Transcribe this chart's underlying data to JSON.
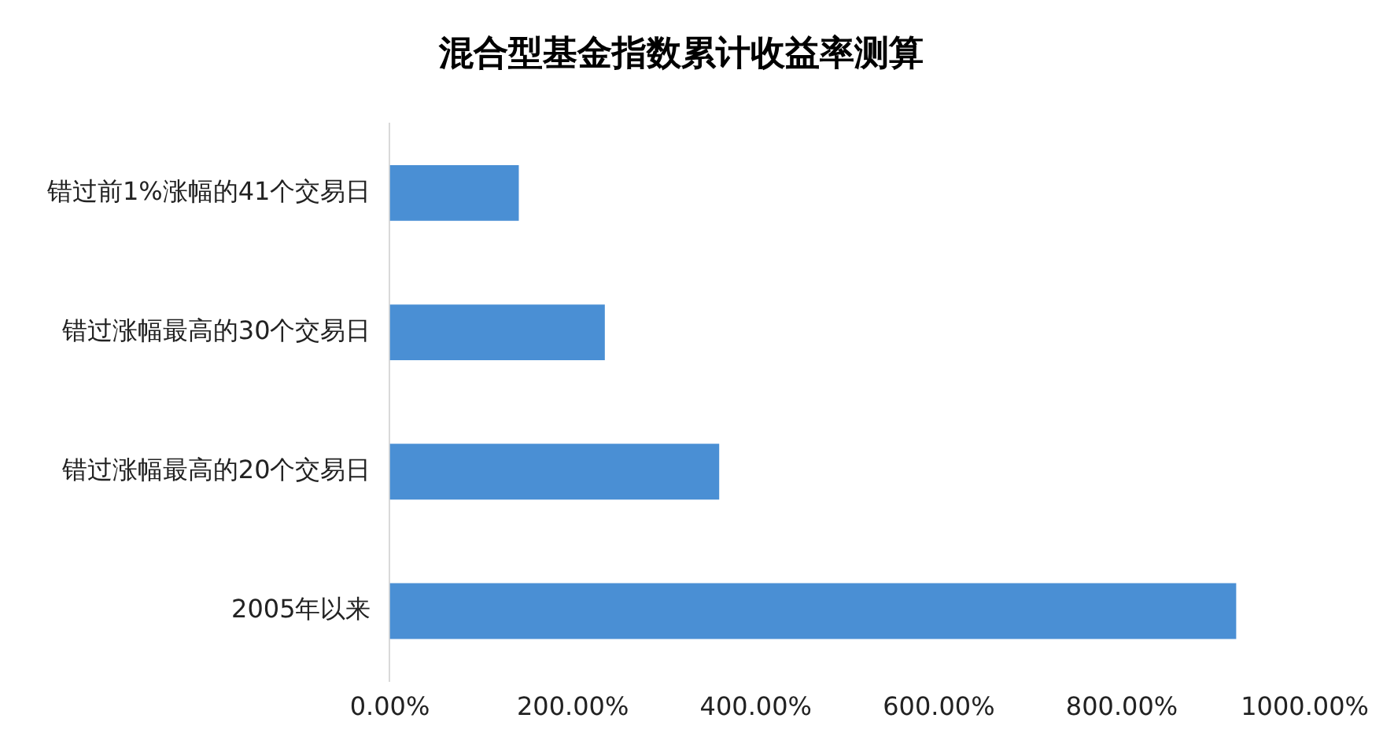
{
  "chart_data": {
    "type": "bar",
    "orientation": "horizontal",
    "title": "混合型基金指数累计收益率测算",
    "categories": [
      "错过前1%涨幅的41个交易日",
      "错过涨幅最高的30个交易日",
      "错过涨幅最高的20个交易日",
      "2005年以来"
    ],
    "values": [
      141,
      235,
      360,
      925
    ],
    "color": "#4a8fd4",
    "xlim": [
      0,
      1000
    ],
    "xticks": [
      {
        "value": 0,
        "label": "0.00%"
      },
      {
        "value": 200,
        "label": "200.00%"
      },
      {
        "value": 400,
        "label": "400.00%"
      },
      {
        "value": 600,
        "label": "600.00%"
      },
      {
        "value": 800,
        "label": "800.00%"
      },
      {
        "value": 1000,
        "label": "1000.00%"
      }
    ],
    "grid": false,
    "legend": false
  }
}
